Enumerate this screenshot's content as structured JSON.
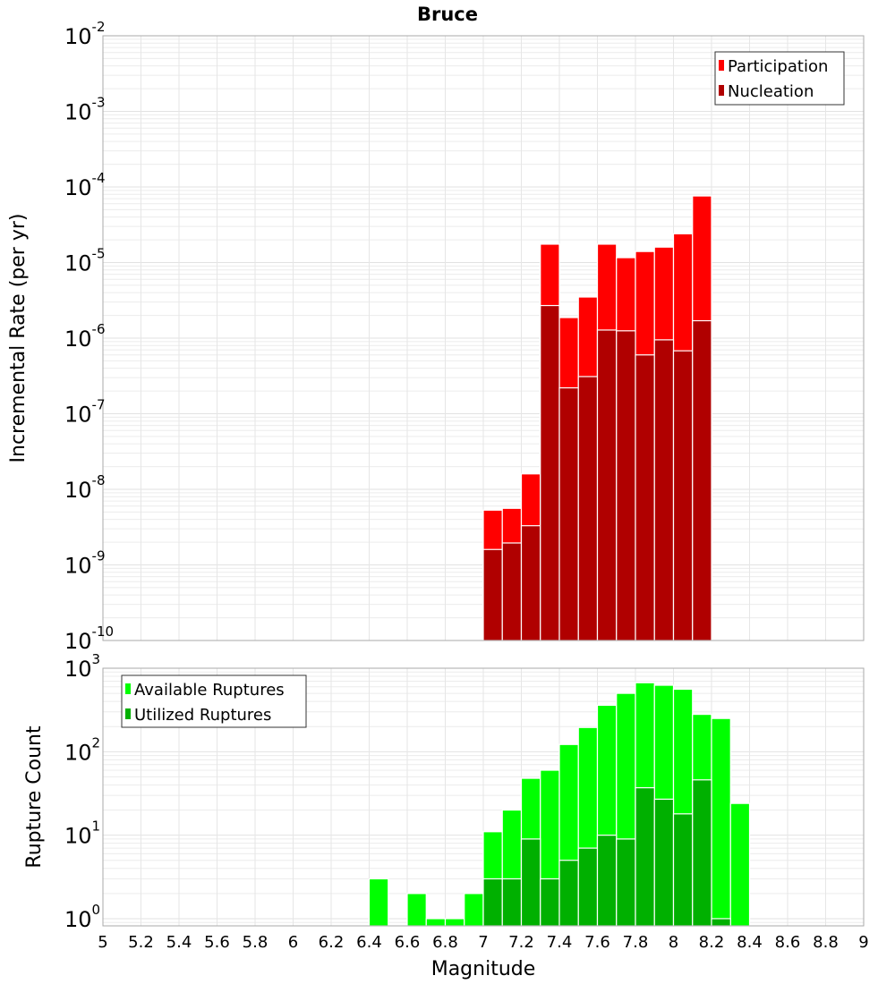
{
  "chart_data": [
    {
      "type": "bar",
      "title": "Bruce",
      "xlabel": "Magnitude",
      "ylabel": "Incremental Rate (per yr)",
      "yscale": "log",
      "ylim": [
        1e-10,
        0.01
      ],
      "xlim": [
        5,
        9
      ],
      "bar_width": 0.1,
      "grid": true,
      "legend_position": "top-right",
      "x": [
        7.05,
        7.15,
        7.25,
        7.35,
        7.45,
        7.55,
        7.65,
        7.75,
        7.85,
        7.95,
        8.05,
        8.15
      ],
      "series": [
        {
          "name": "Participation",
          "color": "#ff0000",
          "values": [
            5.3e-09,
            5.6e-09,
            1.6e-08,
            1.75e-05,
            1.87e-06,
            3.5e-06,
            1.75e-05,
            1.16e-05,
            1.4e-05,
            1.6e-05,
            2.4e-05,
            7.6e-05
          ]
        },
        {
          "name": "Nucleation",
          "color": "#b00000",
          "values": [
            1.6e-09,
            1.95e-09,
            3.3e-09,
            2.7e-06,
            2.2e-07,
            3.1e-07,
            1.28e-06,
            1.25e-06,
            6e-07,
            9.5e-07,
            6.8e-07,
            1.7e-06
          ]
        }
      ],
      "ytick_exponents": [
        "-10",
        "-9",
        "-8",
        "-7",
        "-6",
        "-5",
        "-4",
        "-3",
        "-2"
      ]
    },
    {
      "type": "bar",
      "xlabel": "Magnitude",
      "ylabel": "Rupture Count",
      "yscale": "log",
      "ylim": [
        0.82,
        1000
      ],
      "xlim": [
        5,
        9
      ],
      "bar_width": 0.1,
      "grid": true,
      "legend_position": "top-left",
      "x": [
        6.45,
        6.55,
        6.65,
        6.75,
        6.85,
        6.95,
        7.05,
        7.15,
        7.25,
        7.35,
        7.45,
        7.55,
        7.65,
        7.75,
        7.85,
        7.95,
        8.05,
        8.15,
        8.25,
        8.35
      ],
      "series": [
        {
          "name": "Available Ruptures",
          "color": "#00ff00",
          "values": [
            3,
            0,
            2,
            1,
            1,
            2,
            11,
            20,
            48,
            60,
            122,
            195,
            360,
            500,
            670,
            625,
            560,
            280,
            250,
            24
          ]
        },
        {
          "name": "Utilized Ruptures",
          "color": "#00b000",
          "values": [
            0,
            0,
            0,
            0,
            0,
            0,
            3,
            3,
            9,
            3,
            5,
            7,
            10,
            9,
            37,
            27,
            18,
            46,
            1,
            0
          ]
        }
      ],
      "ytick_exponents": [
        "0",
        "1",
        "2",
        "3"
      ],
      "xticks": [
        "5",
        "5.2",
        "5.4",
        "5.6",
        "5.8",
        "6",
        "6.2",
        "6.4",
        "6.6",
        "6.8",
        "7",
        "7.2",
        "7.4",
        "7.6",
        "7.8",
        "8",
        "8.2",
        "8.4",
        "8.6",
        "8.8",
        "9"
      ]
    }
  ]
}
